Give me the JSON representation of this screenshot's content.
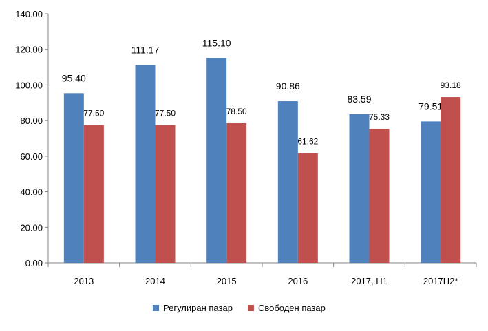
{
  "chart_data": {
    "type": "bar",
    "categories": [
      "2013",
      "2014",
      "2015",
      "2016",
      "2017, H1",
      "2017H2*"
    ],
    "series": [
      {
        "name": "Регулиран пазар",
        "color": "#4F81BD",
        "values": [
          95.4,
          111.17,
          115.1,
          90.86,
          83.59,
          79.51
        ],
        "labels": [
          "95.40",
          "111.17",
          "115.10",
          "90.86",
          "83.59",
          "79.51"
        ]
      },
      {
        "name": "Свободен пазар",
        "color": "#C0504D",
        "values": [
          77.5,
          77.5,
          78.5,
          61.62,
          75.33,
          93.18
        ],
        "labels": [
          "77.50",
          "77.50",
          "78.50",
          "61.62",
          "75.33",
          "93.18"
        ]
      }
    ],
    "y_ticks": [
      0,
      20,
      40,
      60,
      80,
      100,
      120,
      140
    ],
    "y_tick_labels": [
      "0.00",
      "20.00",
      "40.00",
      "60.00",
      "80.00",
      "100.00",
      "120.00",
      "140.00"
    ],
    "ylim": [
      0,
      140
    ],
    "grid": false,
    "legend": "bottom-center",
    "title": "",
    "xlabel": "",
    "ylabel": ""
  }
}
